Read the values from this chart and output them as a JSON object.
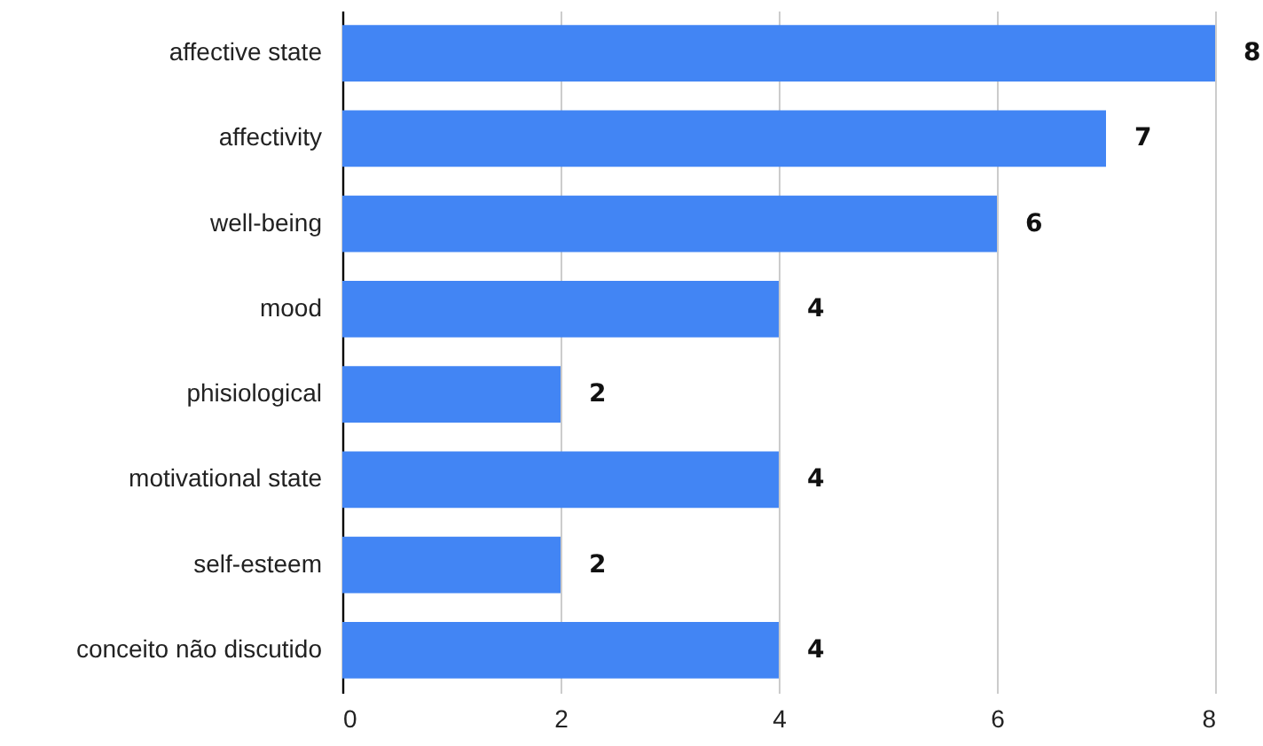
{
  "chart_data": {
    "type": "bar",
    "orientation": "horizontal",
    "categories": [
      "affective state",
      "affectivity",
      "well-being",
      "mood",
      "phisiological",
      "motivational state",
      "self-esteem",
      "conceito não discutido"
    ],
    "values": [
      8,
      7,
      6,
      4,
      2,
      4,
      2,
      4
    ],
    "color": "#4285f4",
    "xlim": [
      0,
      8
    ],
    "xticks": [
      0,
      2,
      4,
      6,
      8
    ],
    "grid": "x",
    "data_labels": true
  }
}
